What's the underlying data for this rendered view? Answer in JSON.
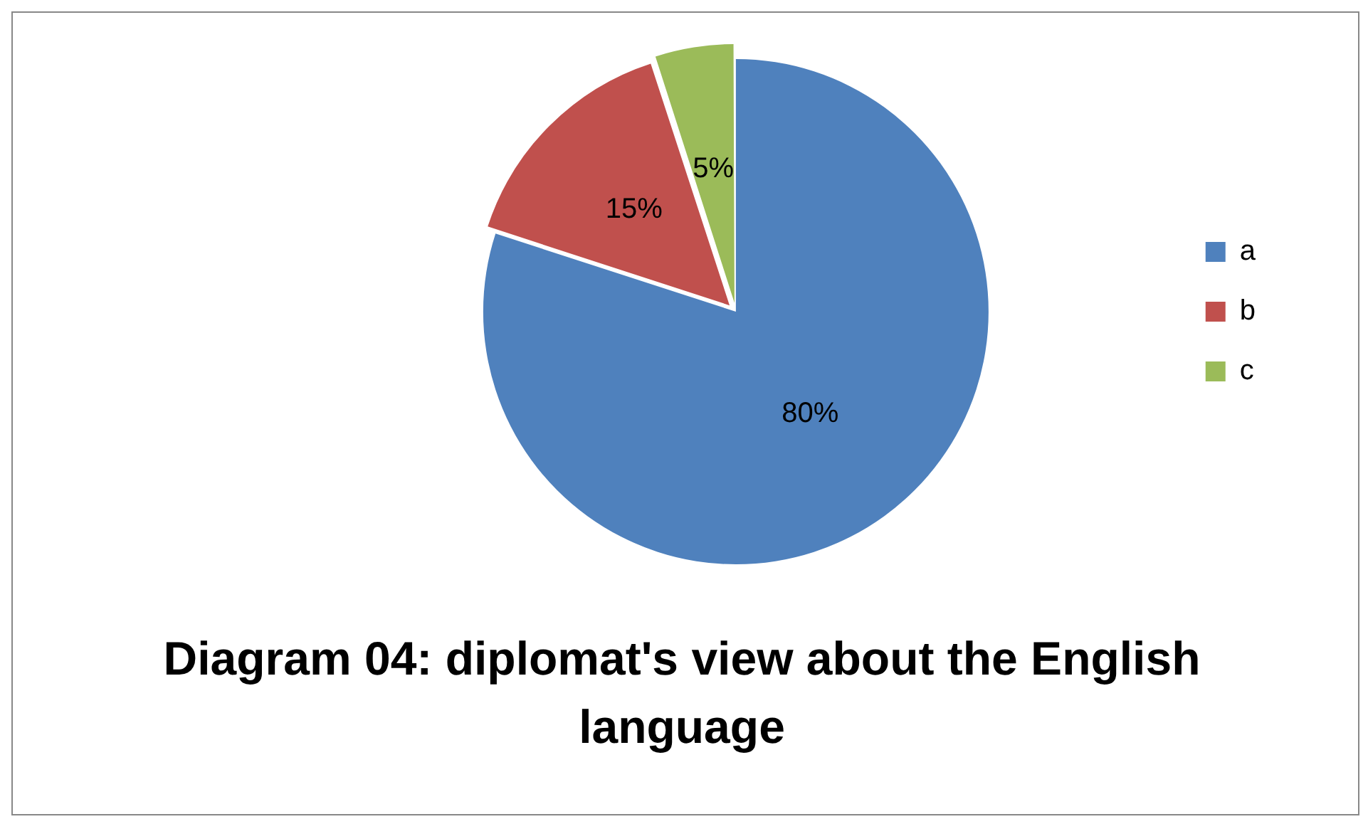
{
  "chart_data": {
    "type": "pie",
    "title": "Diagram 04: diplomat's view about the English language",
    "categories": [
      "a",
      "b",
      "c"
    ],
    "values": [
      80,
      15,
      5
    ],
    "colors": [
      "#4f81bd",
      "#c0504d",
      "#9bbb59"
    ],
    "value_labels": [
      "80%",
      "15%",
      "5%"
    ],
    "legend": "right"
  }
}
